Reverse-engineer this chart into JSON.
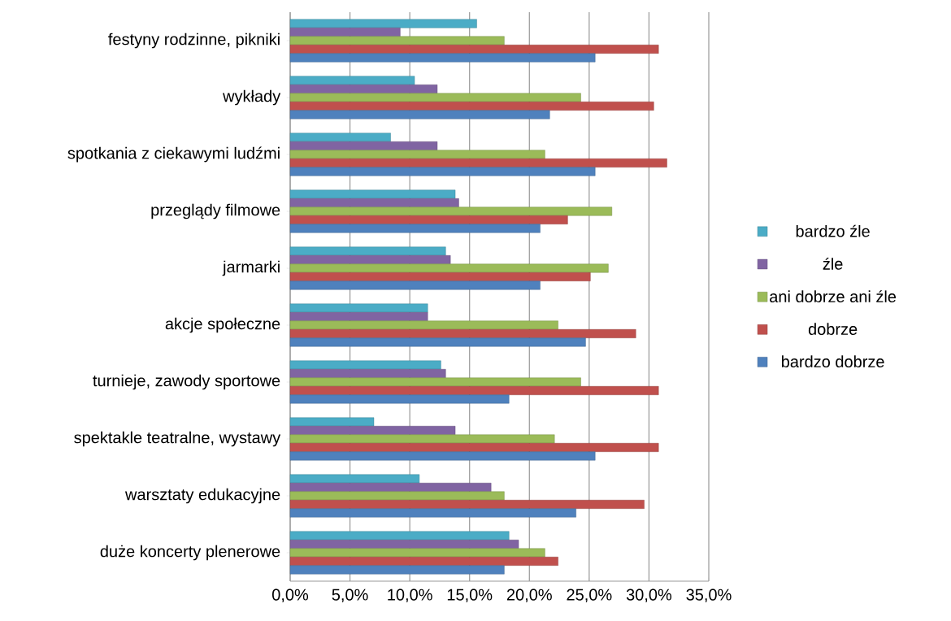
{
  "chart_data": {
    "type": "bar",
    "orientation": "horizontal",
    "categories": [
      "festyny rodzinne, pikniki",
      "wykłady",
      "spotkania z ciekawymi ludźmi",
      "przeglądy filmowe",
      "jarmarki",
      "akcje społeczne",
      "turnieje, zawody sportowe",
      "spektakle teatralne, wystawy",
      "warsztaty edukacyjne",
      "duże koncerty plenerowe"
    ],
    "series": [
      {
        "name": "bardzo źle",
        "color": "#4bacc6",
        "values": [
          15.6,
          10.4,
          8.4,
          13.8,
          13.0,
          11.5,
          12.6,
          7.0,
          10.8,
          18.3
        ]
      },
      {
        "name": "źle",
        "color": "#8064a2",
        "values": [
          9.2,
          12.3,
          12.3,
          14.1,
          13.4,
          11.5,
          13.0,
          13.8,
          16.8,
          19.1
        ]
      },
      {
        "name": "ani dobrze ani źle",
        "color": "#9bbb59",
        "values": [
          17.9,
          24.3,
          21.3,
          26.9,
          26.6,
          22.4,
          24.3,
          22.1,
          17.9,
          21.3
        ]
      },
      {
        "name": "dobrze",
        "color": "#c0504d",
        "values": [
          30.8,
          30.4,
          31.5,
          23.2,
          25.1,
          28.9,
          30.8,
          30.8,
          29.6,
          22.4
        ]
      },
      {
        "name": "bardzo dobrze",
        "color": "#4f81bd",
        "values": [
          25.5,
          21.7,
          25.5,
          20.9,
          20.9,
          24.7,
          18.3,
          25.5,
          23.9,
          17.9
        ]
      }
    ],
    "xlim": [
      0,
      35
    ],
    "xticks": [
      {
        "value": 0,
        "label": "0,0%"
      },
      {
        "value": 5,
        "label": "5,0%"
      },
      {
        "value": 10,
        "label": "10,0%"
      },
      {
        "value": 15,
        "label": "15,0%"
      },
      {
        "value": 20,
        "label": "20,0%"
      },
      {
        "value": 25,
        "label": "25,0%"
      },
      {
        "value": 30,
        "label": "30,0%"
      },
      {
        "value": 35,
        "label": "35,0%"
      }
    ],
    "grid": "x",
    "legend": "right"
  }
}
